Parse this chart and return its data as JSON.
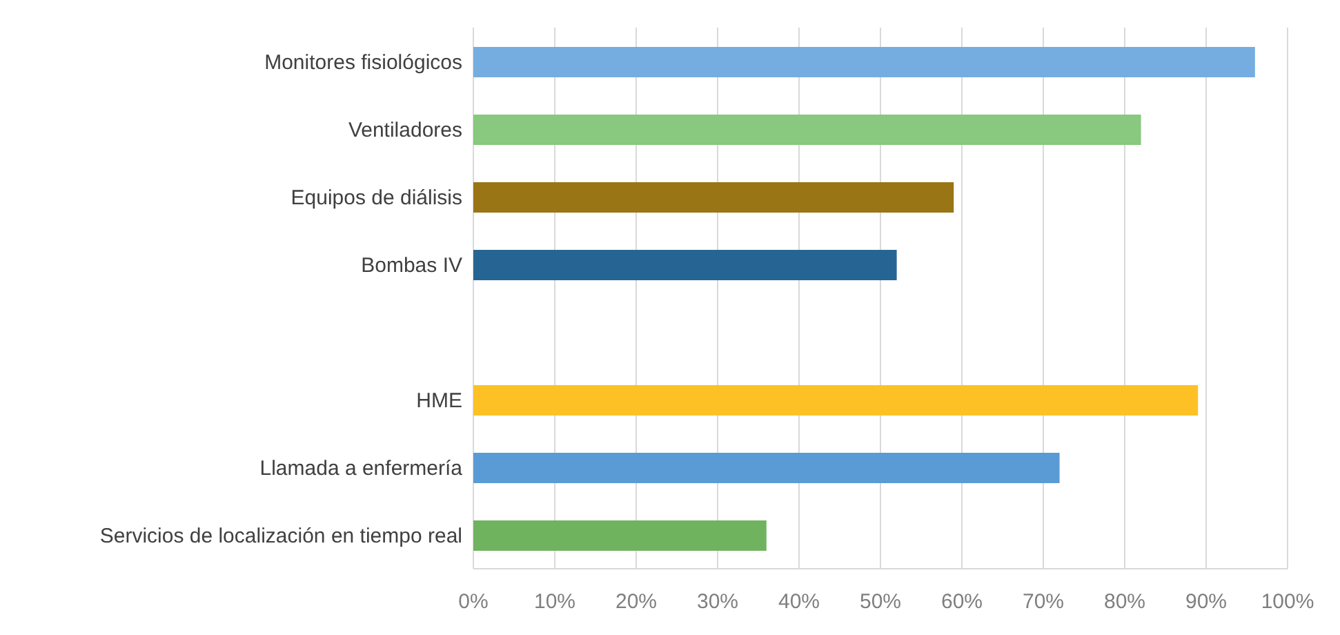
{
  "chart_data": {
    "type": "bar",
    "orientation": "horizontal",
    "categories": [
      "Monitores fisiológicos",
      "Ventiladores",
      "Equipos de diálisis",
      "Bombas IV",
      null,
      "HME",
      "Llamada a enfermería",
      "Servicios de localización en tiempo real"
    ],
    "values": [
      96,
      82,
      59,
      52,
      null,
      89,
      72,
      36
    ],
    "colors": [
      "#75ade0",
      "#88c87f",
      "#9a7516",
      "#266593",
      "#9a9a9a",
      "#fdc125",
      "#5b9bd5",
      "#70b35f"
    ],
    "xlim": [
      0,
      100
    ],
    "xticks": [
      {
        "value": 0,
        "label": "0%"
      },
      {
        "value": 10,
        "label": "10%"
      },
      {
        "value": 20,
        "label": "20%"
      },
      {
        "value": 30,
        "label": "30%"
      },
      {
        "value": 40,
        "label": "40%"
      },
      {
        "value": 50,
        "label": "50%"
      },
      {
        "value": 60,
        "label": "60%"
      },
      {
        "value": 70,
        "label": "70%"
      },
      {
        "value": 80,
        "label": "80%"
      },
      {
        "value": 90,
        "label": "90%"
      },
      {
        "value": 100,
        "label": "100%"
      }
    ],
    "grid": "x"
  }
}
